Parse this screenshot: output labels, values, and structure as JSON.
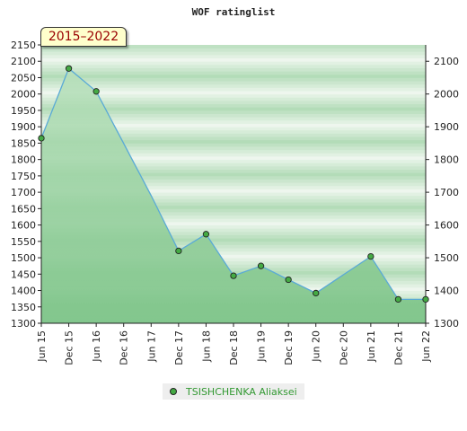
{
  "chart_data": {
    "type": "area",
    "title": "WOF ratinglist",
    "period": "2015–2022",
    "x": [
      "Jun 15",
      "Dec 15",
      "Jun 16",
      "Dec 16",
      "Jun 17",
      "Dec 17",
      "Jun 18",
      "Dec 18",
      "Jun 19",
      "Dec 19",
      "Jun 20",
      "Dec 20",
      "Jun 21",
      "Dec 21",
      "Jun 22"
    ],
    "ylim": [
      1300,
      2150
    ],
    "yticks_left": [
      1300,
      1350,
      1400,
      1450,
      1500,
      1550,
      1600,
      1650,
      1700,
      1750,
      1800,
      1850,
      1900,
      1950,
      2000,
      2050,
      2100,
      2150
    ],
    "yticks_right": [
      1300,
      1400,
      1500,
      1600,
      1700,
      1800,
      1900,
      2000,
      2100
    ],
    "series": [
      {
        "name": "TSISHCHENKA Aliaksei",
        "points": [
          {
            "x": "Jun 15",
            "y": 1865
          },
          {
            "x": "Dec 15",
            "y": 2078
          },
          {
            "x": "Jun 16",
            "y": 2008
          },
          {
            "x": "Jun 17",
            "y": 1690,
            "marker": false
          },
          {
            "x": "Dec 17",
            "y": 1521
          },
          {
            "x": "Jun 18",
            "y": 1572
          },
          {
            "x": "Dec 18",
            "y": 1445
          },
          {
            "x": "Jun 19",
            "y": 1475
          },
          {
            "x": "Dec 19",
            "y": 1433
          },
          {
            "x": "Jun 20",
            "y": 1392
          },
          {
            "x": "Jun 21",
            "y": 1504
          },
          {
            "x": "Dec 21",
            "y": 1373
          },
          {
            "x": "Jun 22",
            "y": 1373
          }
        ]
      }
    ],
    "legend_position": "bottom",
    "grid": true
  },
  "colors": {
    "line": "#5aaad6",
    "marker": "#44aa44",
    "band_light": "#eef6ee",
    "band_dark": "#b3dcb8",
    "fill_top": "#b8e0bc",
    "fill_bottom": "#7dc488"
  }
}
